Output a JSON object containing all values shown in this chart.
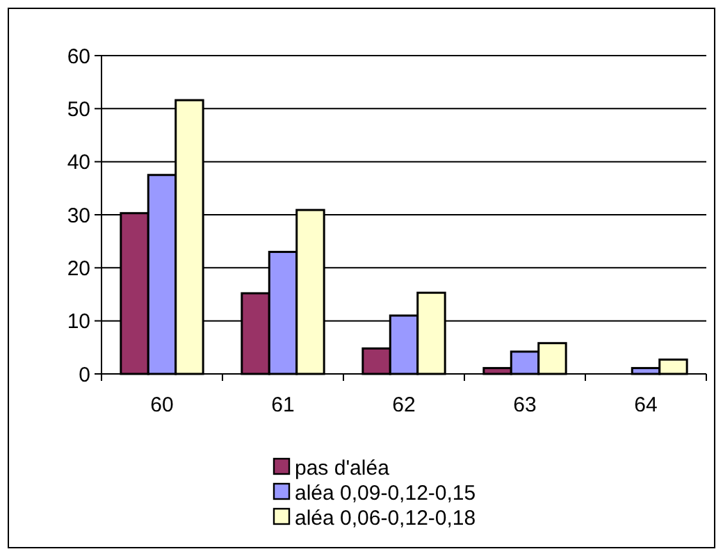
{
  "chart_data": {
    "type": "bar",
    "categories": [
      "60",
      "61",
      "62",
      "63",
      "64"
    ],
    "series": [
      {
        "name": "pas d'aléa",
        "color": "#993366",
        "values": [
          30.3,
          15.2,
          4.8,
          1.1,
          null
        ]
      },
      {
        "name": "aléa 0,09-0,12-0,15",
        "color": "#9999ff",
        "values": [
          37.5,
          23,
          11,
          4.2,
          1.1
        ]
      },
      {
        "name": "aléa 0,06-0,12-0,18",
        "color": "#ffffcc",
        "values": [
          51.6,
          30.9,
          15.3,
          5.8,
          2.7
        ]
      }
    ],
    "ylim": [
      0,
      60
    ],
    "yticks": [
      0,
      10,
      20,
      30,
      40,
      50,
      60
    ],
    "grid": "y",
    "legend": "bottom"
  }
}
